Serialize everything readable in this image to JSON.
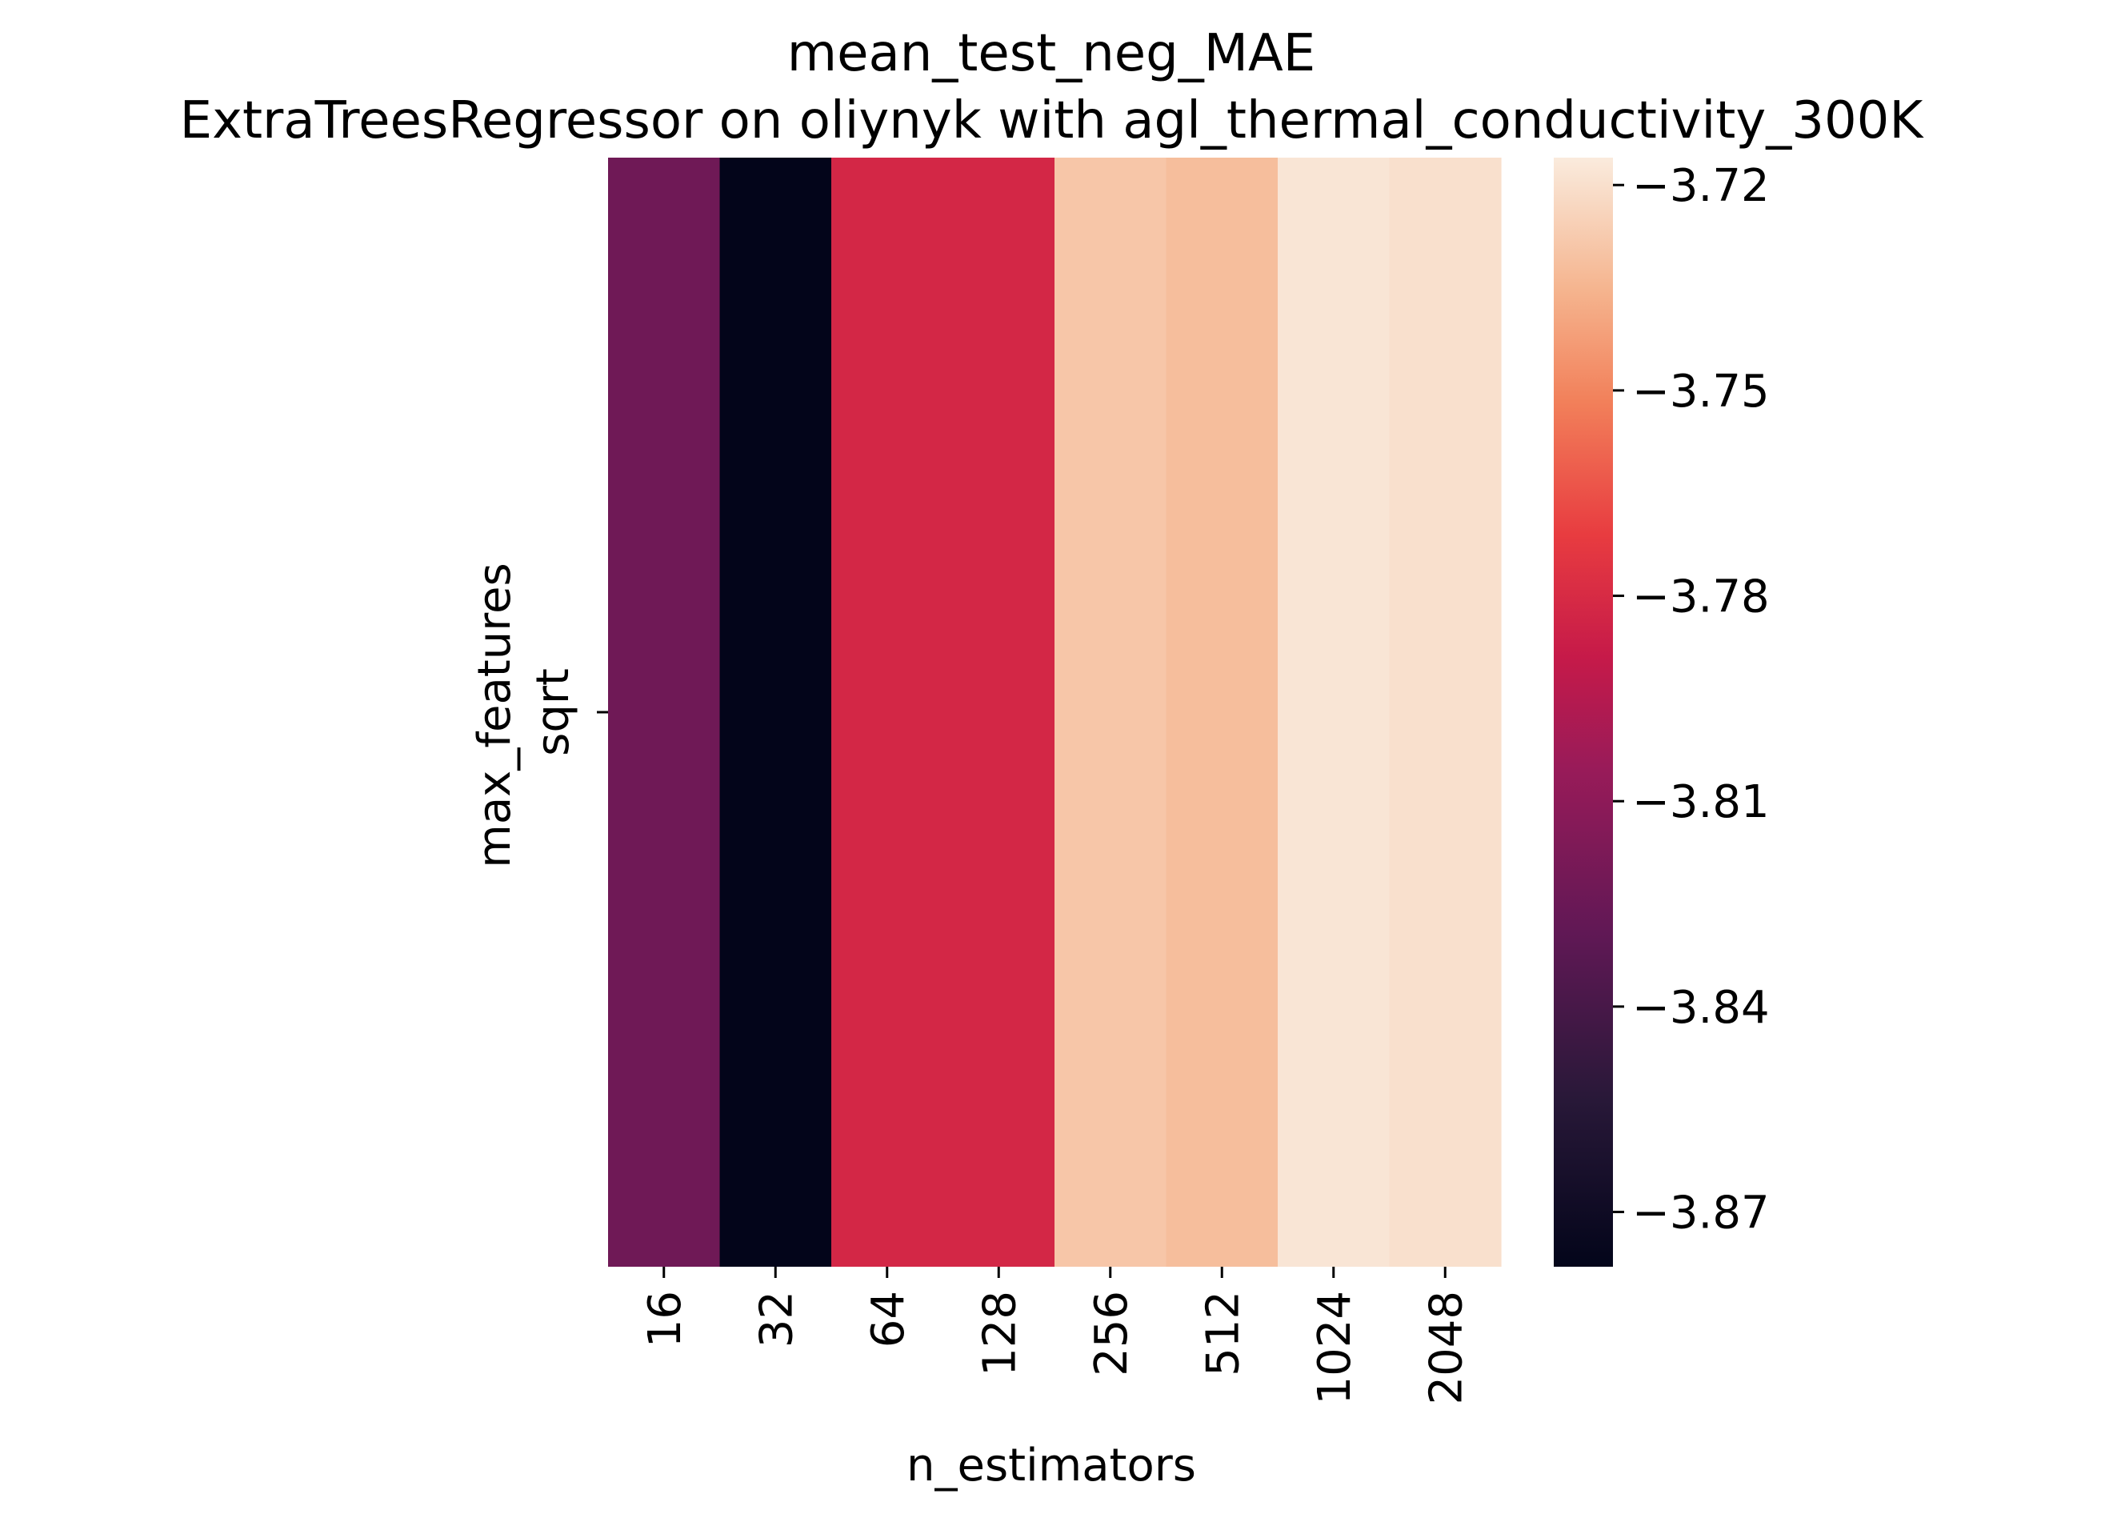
{
  "chart_data": {
    "type": "heatmap",
    "title": "mean_test_neg_MAE",
    "subtitle": "ExtraTreesRegressor on oliynyk with agl_thermal_conductivity_300K",
    "xlabel": "n_estimators",
    "ylabel": "max_features",
    "x_categories": [
      "16",
      "32",
      "64",
      "128",
      "256",
      "512",
      "1024",
      "2048"
    ],
    "y_categories": [
      "sqrt"
    ],
    "values": [
      [
        -3.823,
        -3.878,
        -3.782,
        -3.782,
        -3.729,
        -3.732,
        -3.718,
        -3.72
      ]
    ],
    "colormap": "rocket",
    "color_range": [
      -3.878,
      -3.716
    ],
    "colorbar_ticks": [
      -3.72,
      -3.75,
      -3.78,
      -3.81,
      -3.84,
      -3.87
    ],
    "colorbar_tick_labels": [
      "−3.72",
      "−3.75",
      "−3.78",
      "−3.81",
      "−3.84",
      "−3.87"
    ],
    "grid": false,
    "legend": "colorbar-right"
  }
}
